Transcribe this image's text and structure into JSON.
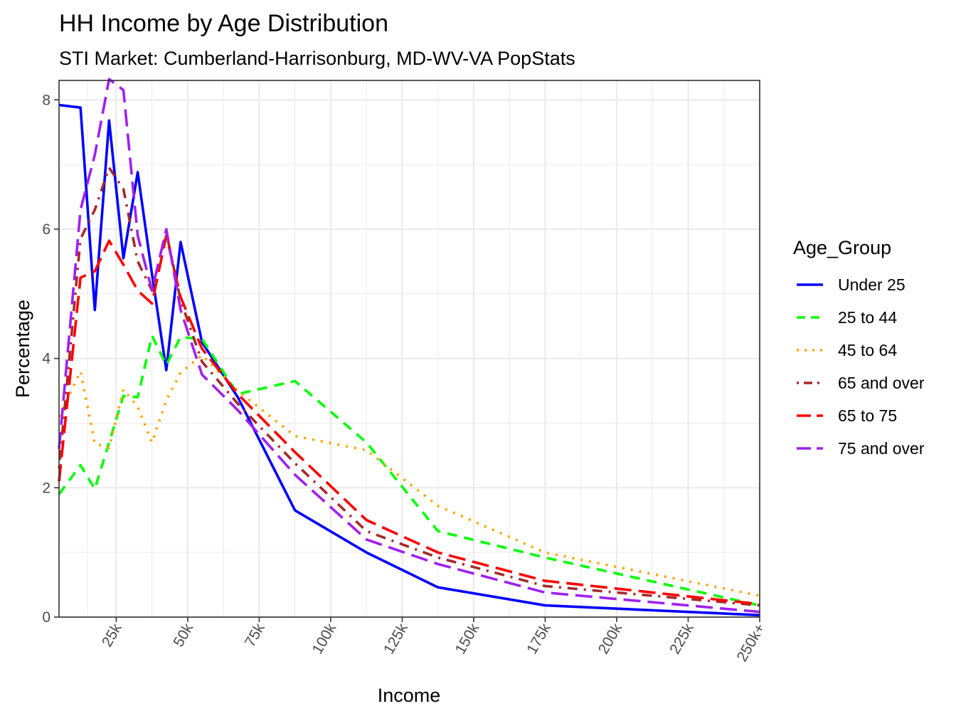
{
  "chart_data": {
    "type": "line",
    "title": "HH Income by Age Distribution",
    "subtitle": "STI Market: Cumberland-Harrisonburg, MD-WV-VA PopStats",
    "xlabel": "Income",
    "ylabel": "Percentage",
    "xlim": [
      5,
      250
    ],
    "ylim": [
      0,
      8.3
    ],
    "x_ticks": [
      25,
      50,
      75,
      100,
      125,
      150,
      175,
      200,
      225,
      250
    ],
    "x_tick_labels": [
      "25k",
      "50k",
      "75k",
      "100k",
      "125k",
      "150k",
      "175k",
      "200k",
      "225k",
      "250k+"
    ],
    "y_ticks": [
      0,
      2,
      4,
      6,
      8
    ],
    "y_tick_labels": [
      "0",
      "2",
      "4",
      "6",
      "8"
    ],
    "grid": true,
    "legend": {
      "title": "Age_Group",
      "position": "right"
    },
    "x": [
      5,
      12.5,
      17.5,
      22.5,
      27.5,
      32.5,
      37.5,
      42.5,
      47.5,
      55,
      67.5,
      87.5,
      112.5,
      137.5,
      175,
      250
    ],
    "series": [
      {
        "name": "Under 25",
        "color": "#0000ff",
        "dash": "solid",
        "values": [
          7.92,
          7.88,
          4.75,
          7.68,
          5.55,
          6.88,
          5.3,
          3.82,
          5.8,
          4.25,
          3.4,
          1.65,
          1.0,
          0.46,
          0.18,
          0.03
        ]
      },
      {
        "name": "25 to 44",
        "color": "#00ff00",
        "dash": "dashed",
        "values": [
          1.9,
          2.35,
          1.98,
          2.7,
          3.42,
          3.4,
          4.35,
          3.9,
          4.33,
          4.3,
          3.45,
          3.65,
          2.7,
          1.33,
          0.92,
          0.18
        ]
      },
      {
        "name": "45 to 64",
        "color": "#ffa500",
        "dash": "dotted",
        "values": [
          3.1,
          3.8,
          2.68,
          2.62,
          3.52,
          3.25,
          2.7,
          3.35,
          3.78,
          4.05,
          3.5,
          2.8,
          2.58,
          1.72,
          1.0,
          0.33
        ]
      },
      {
        "name": "65 and over",
        "color": "#a52a2a",
        "dash": "dotdash",
        "values": [
          2.3,
          5.85,
          6.3,
          6.95,
          6.62,
          5.5,
          5.05,
          5.95,
          4.9,
          3.95,
          3.3,
          2.38,
          1.33,
          0.92,
          0.48,
          0.18
        ]
      },
      {
        "name": "65 to 75",
        "color": "#ff0000",
        "dash": "longdash",
        "values": [
          2.1,
          5.25,
          5.35,
          5.82,
          5.45,
          5.05,
          4.85,
          5.9,
          4.95,
          4.15,
          3.45,
          2.55,
          1.5,
          1.0,
          0.56,
          0.2
        ]
      },
      {
        "name": "75 and over",
        "color": "#a020f0",
        "dash": "longdash",
        "values": [
          2.6,
          6.3,
          7.15,
          8.32,
          8.15,
          5.9,
          5.05,
          6.0,
          4.75,
          3.75,
          3.2,
          2.2,
          1.2,
          0.82,
          0.38,
          0.08
        ]
      }
    ]
  }
}
